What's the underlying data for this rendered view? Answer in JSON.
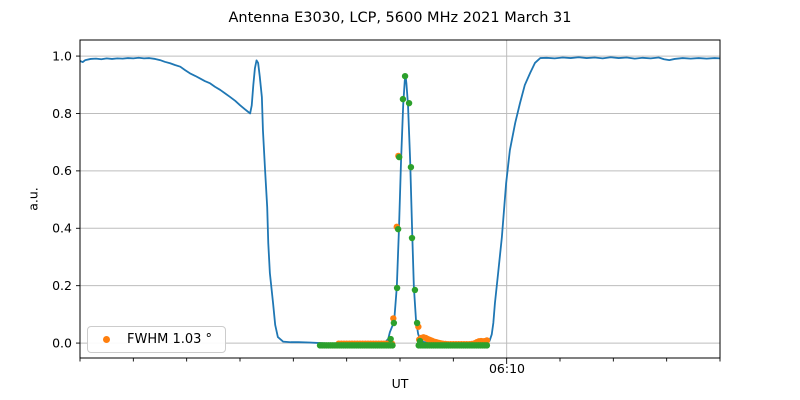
{
  "chart_data": {
    "type": "line",
    "title": "Antenna E3030, LCP, 5600 MHz 2021 March 31",
    "xlabel": "UT",
    "ylabel": "a.u.",
    "grid": true,
    "x_axis": {
      "min": 2,
      "max": 14,
      "note": "values are minutes after 06:00 UT; only one major tick labeled",
      "major_ticks": [
        {
          "value": 10,
          "label": "06:10"
        }
      ],
      "minor_tick_step": 1
    },
    "y_axis": {
      "min": -0.052,
      "max": 1.056,
      "ticks": [
        {
          "value": 0.0,
          "label": "0.0"
        },
        {
          "value": 0.2,
          "label": "0.2"
        },
        {
          "value": 0.4,
          "label": "0.4"
        },
        {
          "value": 0.6,
          "label": "0.6"
        },
        {
          "value": 0.8,
          "label": "0.8"
        },
        {
          "value": 1.0,
          "label": "1.0"
        }
      ]
    },
    "legend": {
      "label": "FWHM 1.03 °",
      "position": "lower left",
      "marker_color": "#ff7f0e"
    },
    "colors": {
      "line": "#1f77b4",
      "orange": "#ff7f0e",
      "green": "#2ca02c",
      "grid": "#bdbdbd",
      "spine": "#000000",
      "text": "#000000"
    },
    "series": [
      {
        "name": "blue-line",
        "type": "line",
        "color": "#1f77b4",
        "width": 1.8,
        "points": [
          [
            2.0,
            0.983
          ],
          [
            2.05,
            0.979
          ],
          [
            2.1,
            0.986
          ],
          [
            2.2,
            0.99
          ],
          [
            2.3,
            0.991
          ],
          [
            2.4,
            0.989
          ],
          [
            2.5,
            0.992
          ],
          [
            2.6,
            0.99
          ],
          [
            2.7,
            0.992
          ],
          [
            2.8,
            0.991
          ],
          [
            2.9,
            0.993
          ],
          [
            3.0,
            0.992
          ],
          [
            3.1,
            0.994
          ],
          [
            3.2,
            0.992
          ],
          [
            3.3,
            0.993
          ],
          [
            3.41,
            0.99
          ],
          [
            3.5,
            0.986
          ],
          [
            3.59,
            0.98
          ],
          [
            3.69,
            0.975
          ],
          [
            3.78,
            0.969
          ],
          [
            3.88,
            0.963
          ],
          [
            3.97,
            0.951
          ],
          [
            4.06,
            0.94
          ],
          [
            4.16,
            0.931
          ],
          [
            4.25,
            0.922
          ],
          [
            4.34,
            0.913
          ],
          [
            4.44,
            0.905
          ],
          [
            4.53,
            0.893
          ],
          [
            4.63,
            0.882
          ],
          [
            4.72,
            0.87
          ],
          [
            4.81,
            0.858
          ],
          [
            4.91,
            0.844
          ],
          [
            5.0,
            0.829
          ],
          [
            5.09,
            0.815
          ],
          [
            5.15,
            0.806
          ],
          [
            5.19,
            0.8
          ],
          [
            5.22,
            0.828
          ],
          [
            5.25,
            0.9
          ],
          [
            5.28,
            0.958
          ],
          [
            5.31,
            0.985
          ],
          [
            5.34,
            0.976
          ],
          [
            5.37,
            0.93
          ],
          [
            5.41,
            0.857
          ],
          [
            5.43,
            0.742
          ],
          [
            5.47,
            0.603
          ],
          [
            5.51,
            0.474
          ],
          [
            5.53,
            0.348
          ],
          [
            5.56,
            0.244
          ],
          [
            5.62,
            0.139
          ],
          [
            5.66,
            0.063
          ],
          [
            5.71,
            0.021
          ],
          [
            5.81,
            0.005
          ],
          [
            5.95,
            0.003
          ],
          [
            6.1,
            0.003
          ],
          [
            6.3,
            0.002
          ],
          [
            6.5,
            0.0
          ],
          [
            6.7,
            -0.002
          ],
          [
            6.9,
            -0.004
          ],
          [
            7.1,
            -0.005
          ],
          [
            7.3,
            -0.005
          ],
          [
            7.5,
            -0.004
          ],
          [
            7.65,
            -0.002
          ],
          [
            7.72,
            0.002
          ],
          [
            7.78,
            0.015
          ],
          [
            7.81,
            0.038
          ],
          [
            7.89,
            0.075
          ],
          [
            7.94,
            0.195
          ],
          [
            7.98,
            0.394
          ],
          [
            8.02,
            0.638
          ],
          [
            8.06,
            0.83
          ],
          [
            8.09,
            0.916
          ],
          [
            8.105,
            0.93
          ],
          [
            8.12,
            0.905
          ],
          [
            8.15,
            0.83
          ],
          [
            8.19,
            0.638
          ],
          [
            8.23,
            0.376
          ],
          [
            8.26,
            0.195
          ],
          [
            8.3,
            0.08
          ],
          [
            8.34,
            0.032
          ],
          [
            8.38,
            0.012
          ],
          [
            8.44,
            0.004
          ],
          [
            8.55,
            0.0
          ],
          [
            8.7,
            -0.003
          ],
          [
            8.9,
            -0.005
          ],
          [
            9.1,
            -0.005
          ],
          [
            9.3,
            -0.005
          ],
          [
            9.5,
            -0.004
          ],
          [
            9.6,
            -0.002
          ],
          [
            9.63,
            0.0
          ],
          [
            9.68,
            0.008
          ],
          [
            9.72,
            0.03
          ],
          [
            9.75,
            0.07
          ],
          [
            9.78,
            0.139
          ],
          [
            9.84,
            0.244
          ],
          [
            9.91,
            0.369
          ],
          [
            9.99,
            0.557
          ],
          [
            10.06,
            0.672
          ],
          [
            10.16,
            0.767
          ],
          [
            10.25,
            0.836
          ],
          [
            10.34,
            0.899
          ],
          [
            10.44,
            0.941
          ],
          [
            10.53,
            0.976
          ],
          [
            10.63,
            0.993
          ],
          [
            10.75,
            0.994
          ],
          [
            10.9,
            0.992
          ],
          [
            11.05,
            0.995
          ],
          [
            11.2,
            0.993
          ],
          [
            11.35,
            0.996
          ],
          [
            11.5,
            0.993
          ],
          [
            11.65,
            0.995
          ],
          [
            11.8,
            0.992
          ],
          [
            11.95,
            0.996
          ],
          [
            12.1,
            0.993
          ],
          [
            12.25,
            0.995
          ],
          [
            12.4,
            0.991
          ],
          [
            12.55,
            0.994
          ],
          [
            12.7,
            0.992
          ],
          [
            12.85,
            0.995
          ],
          [
            12.95,
            0.989
          ],
          [
            13.05,
            0.986
          ],
          [
            13.15,
            0.99
          ],
          [
            13.3,
            0.993
          ],
          [
            13.45,
            0.991
          ],
          [
            13.6,
            0.993
          ],
          [
            13.75,
            0.991
          ],
          [
            13.9,
            0.993
          ],
          [
            14.0,
            0.992
          ]
        ]
      },
      {
        "name": "orange-scatter",
        "type": "scatter",
        "color": "#ff7f0e",
        "radius": 3.2,
        "points": [
          [
            6.85,
            -0.002
          ],
          [
            6.9,
            -0.002
          ],
          [
            6.95,
            -0.002
          ],
          [
            7.0,
            -0.002
          ],
          [
            7.05,
            -0.002
          ],
          [
            7.1,
            -0.002
          ],
          [
            7.15,
            -0.002
          ],
          [
            7.2,
            -0.002
          ],
          [
            7.25,
            -0.002
          ],
          [
            7.3,
            -0.002
          ],
          [
            7.35,
            -0.002
          ],
          [
            7.4,
            -0.002
          ],
          [
            7.45,
            -0.002
          ],
          [
            7.5,
            -0.002
          ],
          [
            7.55,
            -0.002
          ],
          [
            7.6,
            -0.002
          ],
          [
            7.65,
            -0.002
          ],
          [
            7.7,
            -0.002
          ],
          [
            7.75,
            -0.002
          ],
          [
            7.8,
            -0.002
          ],
          [
            7.85,
            -0.002
          ],
          [
            7.875,
            0.086
          ],
          [
            7.939,
            0.405
          ],
          [
            7.969,
            0.652
          ],
          [
            8.344,
            0.057
          ],
          [
            8.36,
            0.012
          ],
          [
            8.4,
            0.018
          ],
          [
            8.44,
            0.02
          ],
          [
            8.48,
            0.018
          ],
          [
            8.52,
            0.014
          ],
          [
            8.56,
            0.011
          ],
          [
            8.6,
            0.008
          ],
          [
            8.64,
            0.005
          ],
          [
            8.68,
            0.003
          ],
          [
            8.72,
            0.001
          ],
          [
            8.76,
            -0.001
          ],
          [
            8.8,
            -0.002
          ],
          [
            8.85,
            -0.003
          ],
          [
            8.9,
            -0.004
          ],
          [
            8.95,
            -0.004
          ],
          [
            9.0,
            -0.004
          ],
          [
            9.05,
            -0.004
          ],
          [
            9.1,
            -0.004
          ],
          [
            9.15,
            -0.004
          ],
          [
            9.2,
            -0.004
          ],
          [
            9.25,
            -0.004
          ],
          [
            9.3,
            -0.004
          ],
          [
            9.35,
            -0.003
          ],
          [
            9.4,
            -0.001
          ],
          [
            9.44,
            0.003
          ],
          [
            9.48,
            0.006
          ],
          [
            9.52,
            0.007
          ],
          [
            9.56,
            0.006
          ],
          [
            9.6,
            0.007
          ],
          [
            9.63,
            0.009
          ]
        ]
      },
      {
        "name": "green-scatter",
        "type": "scatter",
        "color": "#2ca02c",
        "radius": 3.2,
        "points": [
          [
            6.5,
            -0.008
          ],
          [
            6.54,
            -0.008
          ],
          [
            6.58,
            -0.008
          ],
          [
            6.62,
            -0.008
          ],
          [
            6.66,
            -0.008
          ],
          [
            6.7,
            -0.008
          ],
          [
            6.74,
            -0.008
          ],
          [
            6.78,
            -0.008
          ],
          [
            6.82,
            -0.008
          ],
          [
            6.86,
            -0.008
          ],
          [
            6.9,
            -0.008
          ],
          [
            6.94,
            -0.008
          ],
          [
            6.98,
            -0.008
          ],
          [
            7.02,
            -0.008
          ],
          [
            7.06,
            -0.008
          ],
          [
            7.1,
            -0.008
          ],
          [
            7.14,
            -0.008
          ],
          [
            7.18,
            -0.008
          ],
          [
            7.22,
            -0.008
          ],
          [
            7.26,
            -0.008
          ],
          [
            7.3,
            -0.008
          ],
          [
            7.34,
            -0.008
          ],
          [
            7.38,
            -0.008
          ],
          [
            7.42,
            -0.008
          ],
          [
            7.46,
            -0.008
          ],
          [
            7.5,
            -0.008
          ],
          [
            7.54,
            -0.008
          ],
          [
            7.58,
            -0.008
          ],
          [
            7.62,
            -0.008
          ],
          [
            7.66,
            -0.008
          ],
          [
            7.7,
            -0.008
          ],
          [
            7.74,
            -0.008
          ],
          [
            7.78,
            -0.008
          ],
          [
            7.82,
            -0.008
          ],
          [
            7.86,
            -0.008
          ],
          [
            7.825,
            0.014
          ],
          [
            7.885,
            0.07
          ],
          [
            7.945,
            0.192
          ],
          [
            7.965,
            0.397
          ],
          [
            7.985,
            0.648
          ],
          [
            8.055,
            0.85
          ],
          [
            8.095,
            0.93
          ],
          [
            8.17,
            0.836
          ],
          [
            8.205,
            0.613
          ],
          [
            8.225,
            0.366
          ],
          [
            8.28,
            0.185
          ],
          [
            8.32,
            0.07
          ],
          [
            8.375,
            0.007
          ],
          [
            8.35,
            -0.008
          ],
          [
            8.39,
            -0.008
          ],
          [
            8.43,
            -0.008
          ],
          [
            8.47,
            -0.008
          ],
          [
            8.51,
            -0.008
          ],
          [
            8.55,
            -0.008
          ],
          [
            8.59,
            -0.008
          ],
          [
            8.63,
            -0.008
          ],
          [
            8.67,
            -0.008
          ],
          [
            8.71,
            -0.008
          ],
          [
            8.75,
            -0.008
          ],
          [
            8.79,
            -0.008
          ],
          [
            8.83,
            -0.008
          ],
          [
            8.87,
            -0.008
          ],
          [
            8.91,
            -0.008
          ],
          [
            8.95,
            -0.008
          ],
          [
            8.99,
            -0.008
          ],
          [
            9.03,
            -0.008
          ],
          [
            9.07,
            -0.008
          ],
          [
            9.11,
            -0.008
          ],
          [
            9.15,
            -0.008
          ],
          [
            9.19,
            -0.008
          ],
          [
            9.23,
            -0.008
          ],
          [
            9.27,
            -0.008
          ],
          [
            9.31,
            -0.008
          ],
          [
            9.35,
            -0.008
          ],
          [
            9.39,
            -0.008
          ],
          [
            9.43,
            -0.008
          ],
          [
            9.47,
            -0.008
          ],
          [
            9.51,
            -0.008
          ],
          [
            9.55,
            -0.008
          ],
          [
            9.59,
            -0.008
          ],
          [
            9.63,
            -0.008
          ]
        ]
      }
    ]
  }
}
